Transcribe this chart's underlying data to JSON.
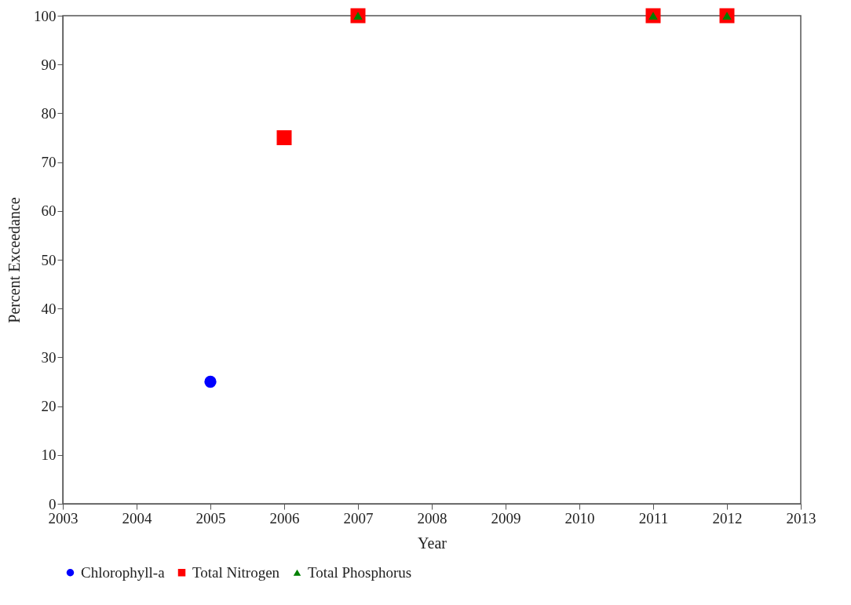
{
  "chart_data": {
    "type": "scatter",
    "xlabel": "Year",
    "ylabel": "Percent Exceedance",
    "xlim": [
      2003,
      2013
    ],
    "xticks": [
      2003,
      2004,
      2005,
      2006,
      2007,
      2008,
      2009,
      2010,
      2011,
      2012,
      2013
    ],
    "ylim": [
      0,
      100
    ],
    "yticks": [
      0,
      10,
      20,
      30,
      40,
      50,
      60,
      70,
      80,
      90,
      100
    ],
    "grid": false,
    "legend": "bottom",
    "series": [
      {
        "name": "Chlorophyll-a",
        "color": "#0000ff",
        "marker": "circle",
        "x": [
          2005
        ],
        "values": [
          25
        ]
      },
      {
        "name": "Total Nitrogen",
        "color": "#ff0000",
        "marker": "square",
        "x": [
          2006,
          2007,
          2011,
          2012
        ],
        "values": [
          75,
          100,
          100,
          100
        ]
      },
      {
        "name": "Total Phosphorus",
        "color": "#008000",
        "marker": "triangle",
        "x": [
          2007,
          2011,
          2012
        ],
        "values": [
          100,
          100,
          100
        ]
      }
    ]
  }
}
